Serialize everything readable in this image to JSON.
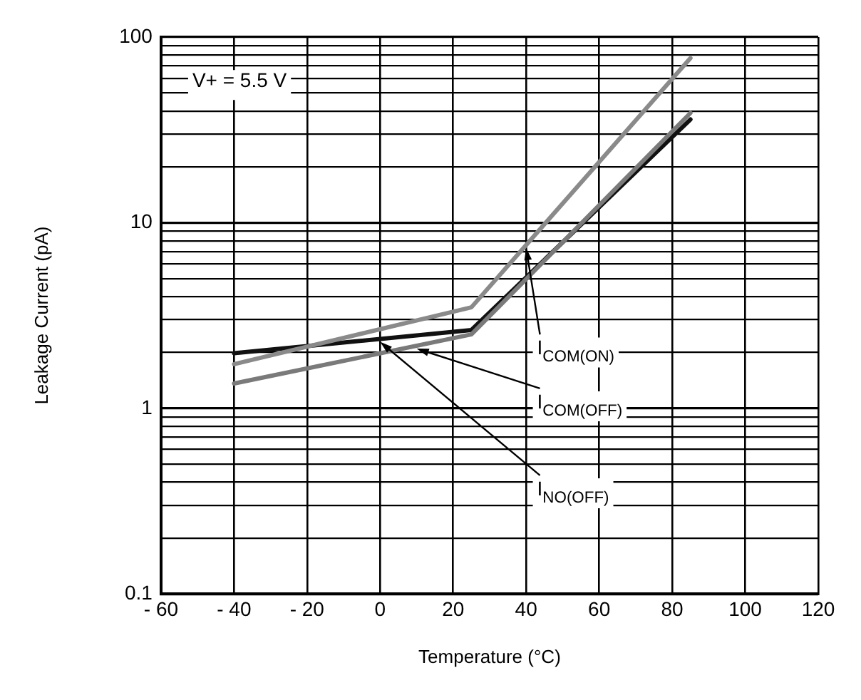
{
  "chart_data": {
    "type": "line",
    "xlabel": "Temperature (°C)",
    "ylabel": "Leakage Current (pA)",
    "x": [
      -40,
      25,
      85
    ],
    "series": [
      {
        "name": "I$_{COM(ON)}$",
        "color": "#8a8a8a",
        "values": [
          1.73,
          3.5,
          77
        ]
      },
      {
        "name": "I$_{COM(OFF)}$",
        "color": "#7a7a7a",
        "values": [
          1.36,
          2.5,
          39
        ]
      },
      {
        "name": "I$_{NO(OFF)}$",
        "color": "#111111",
        "values": [
          1.98,
          2.64,
          36
        ]
      }
    ],
    "annotations": [
      "V+ = 5.5 V"
    ],
    "log": "y",
    "grid": true,
    "marker": "none",
    "line_style": "solid",
    "legend": false,
    "xlim": [
      -60,
      120
    ],
    "xticks": [
      {
        "value": -60,
        "label": "- 60"
      },
      {
        "value": -40,
        "label": "- 40"
      },
      {
        "value": -20,
        "label": "- 20"
      },
      0,
      20,
      40,
      60,
      80,
      100,
      120
    ],
    "ylim": [
      0.1,
      100
    ],
    "yticks": [
      0.1,
      {
        "value": 0.2,
        "label": null
      },
      {
        "value": 0.3,
        "label": null
      },
      {
        "value": 0.4,
        "label": null
      },
      {
        "value": 0.5,
        "label": null
      },
      {
        "value": 0.6,
        "label": null
      },
      {
        "value": 0.7,
        "label": null
      },
      {
        "value": 0.8,
        "label": null
      },
      {
        "value": 0.9,
        "label": null
      },
      1,
      {
        "value": 2,
        "label": null
      },
      {
        "value": 3,
        "label": null
      },
      {
        "value": 4,
        "label": null
      },
      {
        "value": 5,
        "label": null
      },
      {
        "value": 6,
        "label": null
      },
      {
        "value": 7,
        "label": null
      },
      {
        "value": 8,
        "label": null
      },
      {
        "value": 9,
        "label": null
      },
      10,
      {
        "value": 20,
        "label": null
      },
      {
        "value": 30,
        "label": null
      },
      {
        "value": 40,
        "label": null
      },
      {
        "value": 50,
        "label": null
      },
      {
        "value": 60,
        "label": null
      },
      {
        "value": 70,
        "label": null
      },
      {
        "value": 80,
        "label": null
      },
      {
        "value": 90,
        "label": null
      },
      100
    ]
  }
}
